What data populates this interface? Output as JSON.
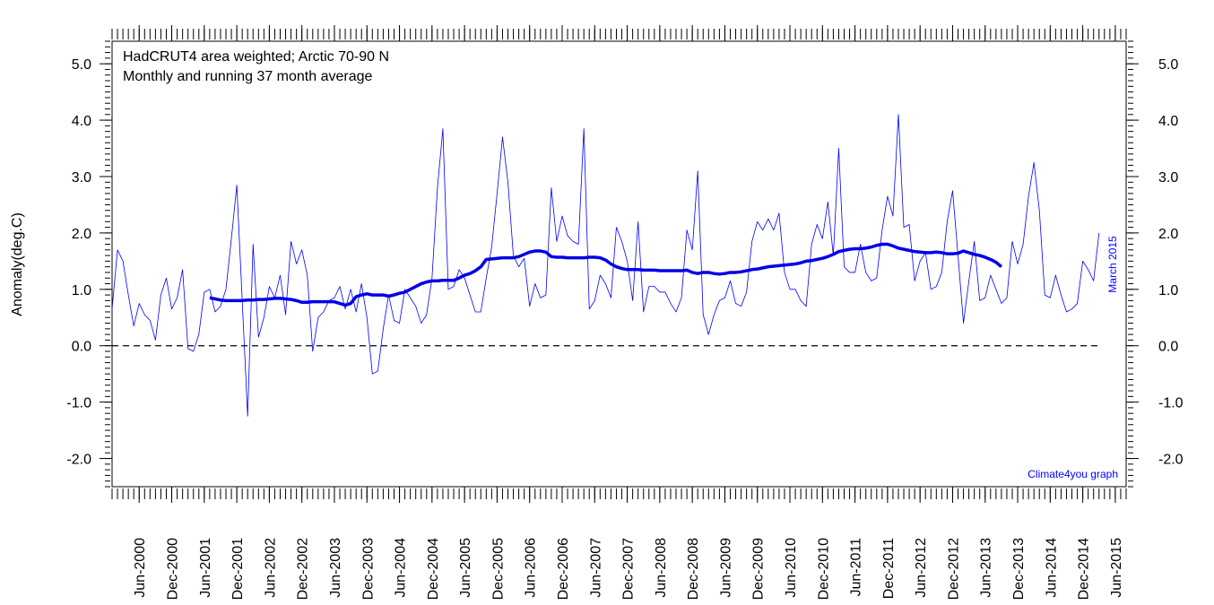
{
  "chart_data": {
    "type": "line",
    "title": "HadCRUT4 area weighted; Arctic 70-90 N",
    "subtitle": "Monthly and running 37 month average",
    "y_label": "Anomaly(deg.C)",
    "annotations": [
      "March 2015",
      "Climate4you graph"
    ],
    "x": [
      "2000-01",
      "2000-02",
      "2000-03",
      "2000-04",
      "2000-05",
      "2000-06",
      "2000-07",
      "2000-08",
      "2000-09",
      "2000-10",
      "2000-11",
      "2000-12",
      "2001-01",
      "2001-02",
      "2001-03",
      "2001-04",
      "2001-05",
      "2001-06",
      "2001-07",
      "2001-08",
      "2001-09",
      "2001-10",
      "2001-11",
      "2001-12",
      "2002-01",
      "2002-02",
      "2002-03",
      "2002-04",
      "2002-05",
      "2002-06",
      "2002-07",
      "2002-08",
      "2002-09",
      "2002-10",
      "2002-11",
      "2002-12",
      "2003-01",
      "2003-02",
      "2003-03",
      "2003-04",
      "2003-05",
      "2003-06",
      "2003-07",
      "2003-08",
      "2003-09",
      "2003-10",
      "2003-11",
      "2003-12",
      "2004-01",
      "2004-02",
      "2004-03",
      "2004-04",
      "2004-05",
      "2004-06",
      "2004-07",
      "2004-08",
      "2004-09",
      "2004-10",
      "2004-11",
      "2004-12",
      "2005-01",
      "2005-02",
      "2005-03",
      "2005-04",
      "2005-05",
      "2005-06",
      "2005-07",
      "2005-08",
      "2005-09",
      "2005-10",
      "2005-11",
      "2005-12",
      "2006-01",
      "2006-02",
      "2006-03",
      "2006-04",
      "2006-05",
      "2006-06",
      "2006-07",
      "2006-08",
      "2006-09",
      "2006-10",
      "2006-11",
      "2006-12",
      "2007-01",
      "2007-02",
      "2007-03",
      "2007-04",
      "2007-05",
      "2007-06",
      "2007-07",
      "2007-08",
      "2007-09",
      "2007-10",
      "2007-11",
      "2007-12",
      "2008-01",
      "2008-02",
      "2008-03",
      "2008-04",
      "2008-05",
      "2008-06",
      "2008-07",
      "2008-08",
      "2008-09",
      "2008-10",
      "2008-11",
      "2008-12",
      "2009-01",
      "2009-02",
      "2009-03",
      "2009-04",
      "2009-05",
      "2009-06",
      "2009-07",
      "2009-08",
      "2009-09",
      "2009-10",
      "2009-11",
      "2009-12",
      "2010-01",
      "2010-02",
      "2010-03",
      "2010-04",
      "2010-05",
      "2010-06",
      "2010-07",
      "2010-08",
      "2010-09",
      "2010-10",
      "2010-11",
      "2010-12",
      "2011-01",
      "2011-02",
      "2011-03",
      "2011-04",
      "2011-05",
      "2011-06",
      "2011-07",
      "2011-08",
      "2011-09",
      "2011-10",
      "2011-11",
      "2011-12",
      "2012-01",
      "2012-02",
      "2012-03",
      "2012-04",
      "2012-05",
      "2012-06",
      "2012-07",
      "2012-08",
      "2012-09",
      "2012-10",
      "2012-11",
      "2012-12",
      "2013-01",
      "2013-02",
      "2013-03",
      "2013-04",
      "2013-05",
      "2013-06",
      "2013-07",
      "2013-08",
      "2013-09",
      "2013-10",
      "2013-11",
      "2013-12",
      "2014-01",
      "2014-02",
      "2014-03",
      "2014-04",
      "2014-05",
      "2014-06",
      "2014-07",
      "2014-08",
      "2014-09",
      "2014-10",
      "2014-11",
      "2014-12",
      "2015-01",
      "2015-02",
      "2015-03"
    ],
    "series": [
      {
        "color": "#0000ff",
        "values": [
          0.65,
          1.7,
          1.5,
          0.9,
          0.35,
          0.75,
          0.55,
          0.45,
          0.1,
          0.9,
          1.2,
          0.65,
          0.85,
          1.35,
          -0.05,
          -0.1,
          0.2,
          0.95,
          1.0,
          0.6,
          0.7,
          1.0,
          1.9,
          2.85,
          0.8,
          -1.25,
          1.8,
          0.15,
          0.5,
          1.05,
          0.85,
          1.25,
          0.55,
          1.85,
          1.45,
          1.7,
          1.25,
          -0.1,
          0.5,
          0.6,
          0.8,
          0.85,
          1.05,
          0.65,
          1.0,
          0.6,
          1.1,
          0.5,
          -0.5,
          -0.45,
          0.3,
          0.9,
          0.45,
          0.4,
          1.0,
          0.85,
          0.7,
          0.4,
          0.55,
          1.2,
          2.8,
          3.85,
          1.0,
          1.05,
          1.35,
          1.2,
          0.9,
          0.6,
          0.6,
          1.2,
          1.75,
          2.7,
          3.7,
          2.9,
          1.6,
          1.4,
          1.55,
          0.7,
          1.1,
          0.85,
          0.9,
          2.8,
          1.85,
          2.3,
          1.95,
          1.85,
          1.8,
          3.85,
          0.65,
          0.8,
          1.25,
          1.1,
          0.85,
          2.1,
          1.85,
          1.5,
          0.8,
          2.2,
          0.6,
          1.05,
          1.05,
          0.95,
          0.95,
          0.75,
          0.6,
          0.85,
          2.05,
          1.7,
          3.1,
          0.55,
          0.2,
          0.55,
          0.8,
          0.85,
          1.15,
          0.75,
          0.7,
          0.95,
          1.85,
          2.2,
          2.05,
          2.25,
          2.05,
          2.35,
          1.3,
          1.0,
          1.0,
          0.8,
          0.7,
          1.8,
          2.15,
          1.9,
          2.55,
          1.6,
          3.5,
          1.4,
          1.3,
          1.3,
          1.8,
          1.3,
          1.15,
          1.2,
          2.05,
          2.65,
          2.3,
          4.1,
          2.1,
          2.15,
          1.15,
          1.5,
          1.65,
          1.0,
          1.05,
          1.3,
          2.2,
          2.75,
          1.6,
          0.4,
          1.15,
          1.85,
          0.8,
          0.85,
          1.25,
          1.0,
          0.75,
          0.85,
          1.85,
          1.45,
          1.8,
          2.65,
          3.25,
          2.4,
          0.9,
          0.85,
          1.25,
          0.9,
          0.6,
          0.65,
          0.75,
          1.5,
          1.35,
          1.15,
          2.0
        ]
      },
      {
        "color": "#0000e6",
        "values": [
          null,
          null,
          null,
          null,
          null,
          null,
          null,
          null,
          null,
          null,
          null,
          null,
          null,
          null,
          null,
          null,
          null,
          null,
          0.85,
          0.83,
          0.81,
          0.8,
          0.8,
          0.8,
          0.8,
          0.81,
          0.81,
          0.82,
          0.82,
          0.83,
          0.84,
          0.84,
          0.83,
          0.82,
          0.8,
          0.77,
          0.77,
          0.78,
          0.78,
          0.78,
          0.78,
          0.78,
          0.75,
          0.72,
          0.75,
          0.87,
          0.9,
          0.92,
          0.9,
          0.9,
          0.9,
          0.88,
          0.9,
          0.93,
          0.95,
          1.0,
          1.05,
          1.1,
          1.13,
          1.15,
          1.15,
          1.16,
          1.16,
          1.16,
          1.2,
          1.25,
          1.28,
          1.33,
          1.4,
          1.53,
          1.54,
          1.55,
          1.56,
          1.56,
          1.56,
          1.58,
          1.62,
          1.66,
          1.68,
          1.68,
          1.66,
          1.58,
          1.57,
          1.57,
          1.56,
          1.56,
          1.56,
          1.56,
          1.57,
          1.57,
          1.56,
          1.52,
          1.45,
          1.4,
          1.37,
          1.35,
          1.35,
          1.35,
          1.34,
          1.34,
          1.34,
          1.33,
          1.33,
          1.33,
          1.33,
          1.33,
          1.34,
          1.3,
          1.28,
          1.3,
          1.3,
          1.28,
          1.27,
          1.28,
          1.3,
          1.3,
          1.31,
          1.33,
          1.35,
          1.36,
          1.38,
          1.4,
          1.41,
          1.42,
          1.43,
          1.44,
          1.45,
          1.47,
          1.5,
          1.51,
          1.53,
          1.55,
          1.58,
          1.62,
          1.67,
          1.69,
          1.71,
          1.72,
          1.72,
          1.73,
          1.75,
          1.78,
          1.8,
          1.8,
          1.77,
          1.73,
          1.71,
          1.69,
          1.67,
          1.66,
          1.65,
          1.65,
          1.66,
          1.65,
          1.63,
          1.63,
          1.64,
          1.68,
          1.65,
          1.62,
          1.6,
          1.57,
          1.53,
          1.48,
          1.4,
          null,
          null,
          null,
          null,
          null,
          null,
          null,
          null,
          null,
          null,
          null,
          null,
          null,
          null,
          null,
          null,
          null,
          null
        ]
      }
    ],
    "xlim": [
      "2000-01",
      "2015-08"
    ],
    "xticks": [
      {
        "value": "2000-06",
        "label": "Jun-2000"
      },
      {
        "value": "2000-12",
        "label": "Dec-2000"
      },
      {
        "value": "2001-06",
        "label": "Jun-2001"
      },
      {
        "value": "2001-12",
        "label": "Dec-2001"
      },
      {
        "value": "2002-06",
        "label": "Jun-2002"
      },
      {
        "value": "2002-12",
        "label": "Dec-2002"
      },
      {
        "value": "2003-06",
        "label": "Jun-2003"
      },
      {
        "value": "2003-12",
        "label": "Dec-2003"
      },
      {
        "value": "2004-06",
        "label": "Jun-2004"
      },
      {
        "value": "2004-12",
        "label": "Dec-2004"
      },
      {
        "value": "2005-06",
        "label": "Jun-2005"
      },
      {
        "value": "2005-12",
        "label": "Dec-2005"
      },
      {
        "value": "2006-06",
        "label": "Jun-2006"
      },
      {
        "value": "2006-12",
        "label": "Dec-2006"
      },
      {
        "value": "2007-06",
        "label": "Jun-2007"
      },
      {
        "value": "2007-12",
        "label": "Dec-2007"
      },
      {
        "value": "2008-06",
        "label": "Jun-2008"
      },
      {
        "value": "2008-12",
        "label": "Dec-2008"
      },
      {
        "value": "2009-06",
        "label": "Jun-2009"
      },
      {
        "value": "2009-12",
        "label": "Dec-2009"
      },
      {
        "value": "2010-06",
        "label": "Jun-2010"
      },
      {
        "value": "2010-12",
        "label": "Dec-2010"
      },
      {
        "value": "2011-06",
        "label": "Jun-2011"
      },
      {
        "value": "2011-12",
        "label": "Dec-2011"
      },
      {
        "value": "2012-06",
        "label": "Jun-2012"
      },
      {
        "value": "2012-12",
        "label": "Dec-2012"
      },
      {
        "value": "2013-06",
        "label": "Jun-2013"
      },
      {
        "value": "2013-12",
        "label": "Dec-2013"
      },
      {
        "value": "2014-06",
        "label": "Jun-2014"
      },
      {
        "value": "2014-12",
        "label": "Dec-2014"
      },
      {
        "value": "2015-06",
        "label": "Jun-2015"
      }
    ],
    "ylim": [
      -2.5,
      5.4
    ],
    "yticks": [
      {
        "value": -2,
        "label": "-2.0"
      },
      {
        "value": -1,
        "label": "-1.0"
      },
      {
        "value": 0,
        "label": "0.0"
      },
      {
        "value": 1,
        "label": "1.0"
      },
      {
        "value": 2,
        "label": "2.0"
      },
      {
        "value": 3,
        "label": "3.0"
      },
      {
        "value": 4,
        "label": "4.0"
      },
      {
        "value": 5,
        "label": "5.0"
      }
    ],
    "y2lim": [
      -2.5,
      5.4
    ],
    "y2ticks": [
      {
        "value": -2,
        "label": "-2.0"
      },
      {
        "value": -1,
        "label": "-1.0"
      },
      {
        "value": 0,
        "label": "0.0"
      },
      {
        "value": 1,
        "label": "1.0"
      },
      {
        "value": 2,
        "label": "2.0"
      },
      {
        "value": 3,
        "label": "3.0"
      },
      {
        "value": 4,
        "label": "4.0"
      },
      {
        "value": 5,
        "label": "5.0"
      }
    ],
    "zero_line": true,
    "annotation_color": "#0000ff"
  }
}
